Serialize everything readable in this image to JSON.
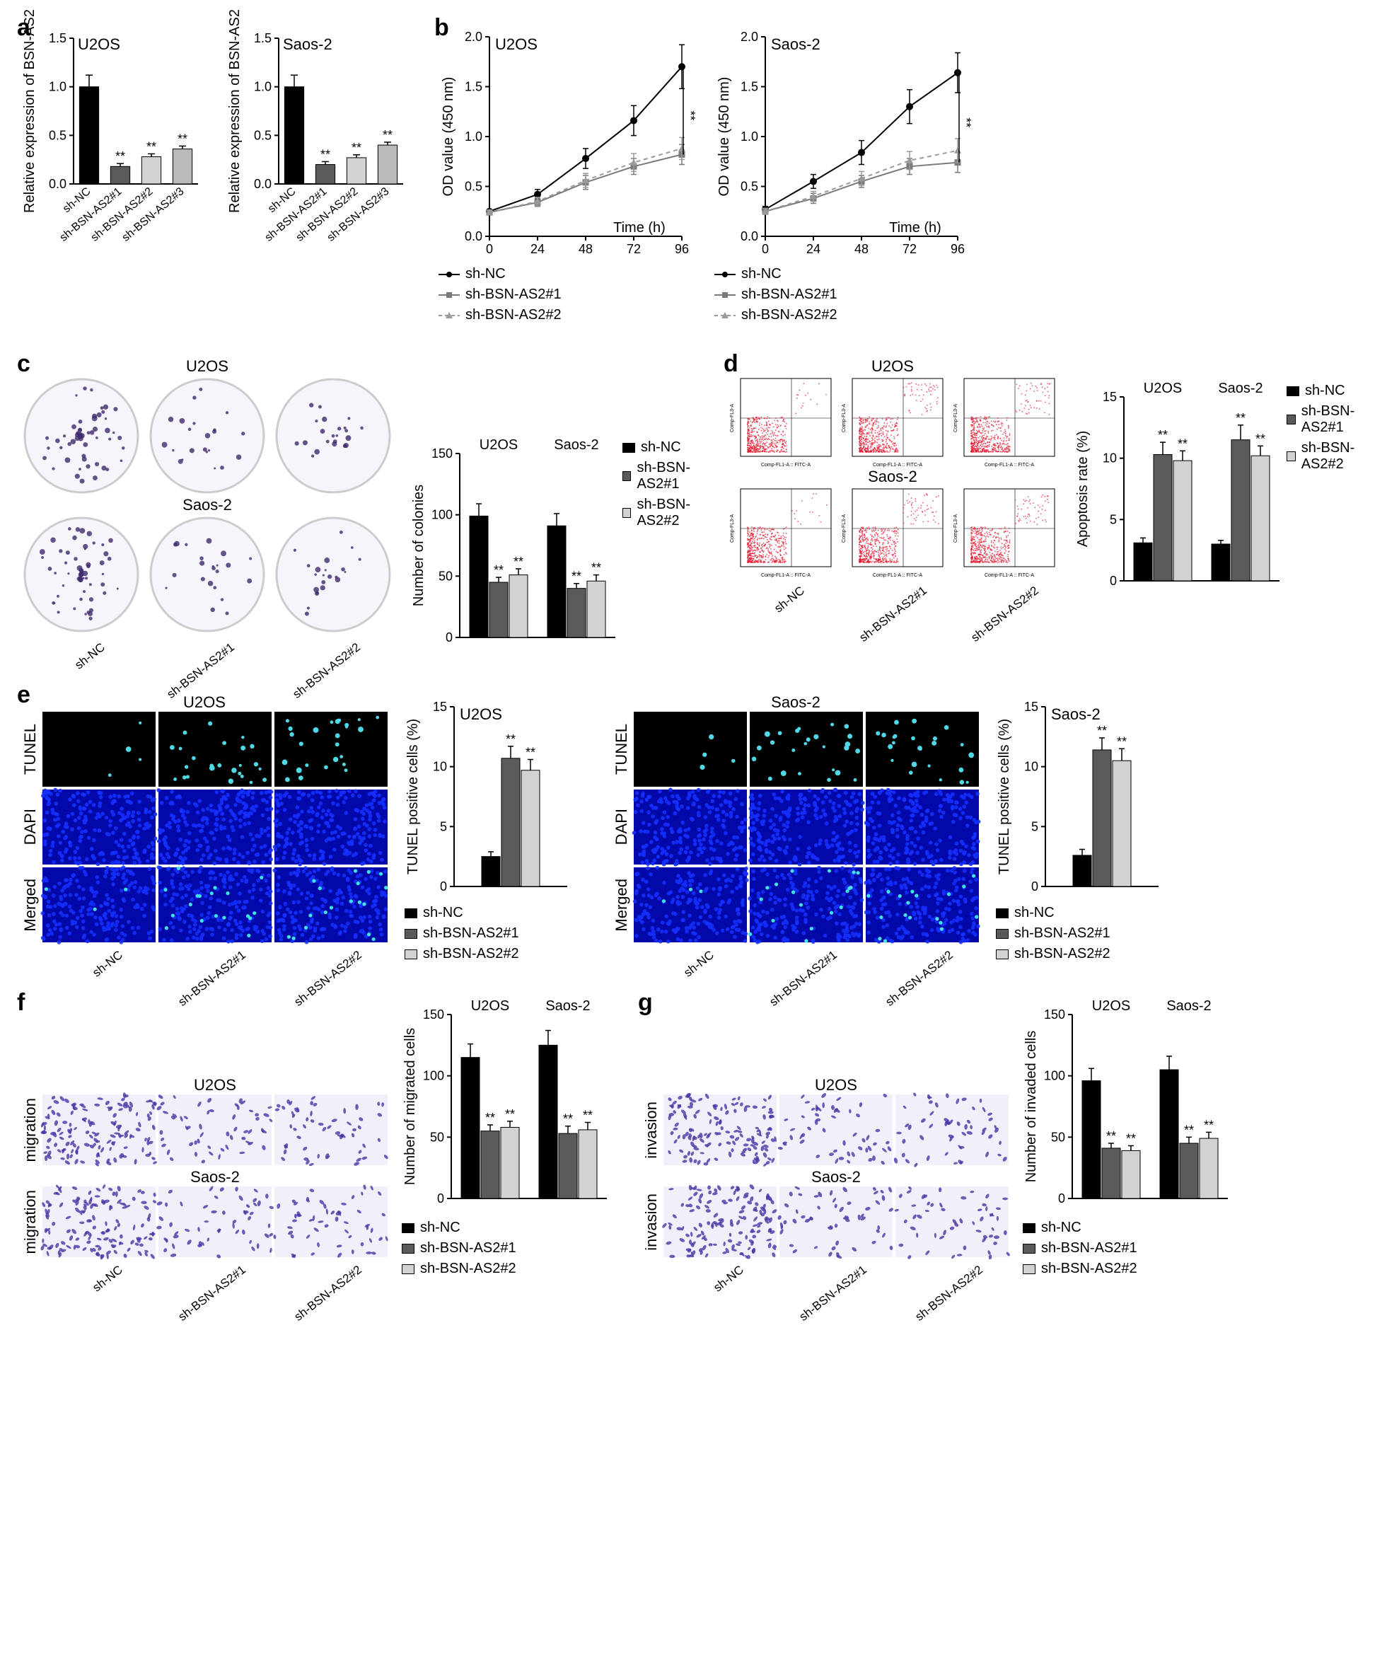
{
  "colors": {
    "black": "#000000",
    "grey_dark": "#5a5a5a",
    "grey_light": "#d2d2d2",
    "white": "#ffffff",
    "axis": "#000000",
    "dish_fill": "#f6f5fb",
    "dish_stroke": "#cccccc",
    "dot_colony": "#3e2b6b",
    "tunel_bg": "#000000",
    "tunel_dot": "#4fd8e6",
    "dapi_fill": "#0a1bdd",
    "dapi_dot": "#1530ff",
    "merge_dot": "#3fe5e5",
    "flow_red": "#e6162d",
    "transwell": "#4a34a5",
    "transwell_bg": "#f2effa"
  },
  "groups": [
    "sh-NC",
    "sh-BSN-AS2#1",
    "sh-BSN-AS2#2"
  ],
  "groups4": [
    "sh-NC",
    "sh-BSN-AS2#1",
    "sh-BSN-AS2#2",
    "sh-BSN-AS2#3"
  ],
  "cell_lines": [
    "U2OS",
    "Saos-2"
  ],
  "sig": "**",
  "a": {
    "ylabel": "Relative expression of BSN-AS2",
    "ylim": [
      0,
      1.5
    ],
    "ytick_step": 0.5,
    "series": {
      "U2OS": {
        "values": [
          1.0,
          0.18,
          0.28,
          0.36
        ],
        "err": [
          0.12,
          0.03,
          0.03,
          0.03
        ],
        "sig": [
          "",
          "**",
          "**",
          "**"
        ]
      },
      "Saos-2": {
        "values": [
          1.0,
          0.2,
          0.27,
          0.4
        ],
        "err": [
          0.12,
          0.03,
          0.03,
          0.03
        ],
        "sig": [
          "",
          "**",
          "**",
          "**"
        ]
      }
    },
    "bar_colors": [
      "#000000",
      "#5a5a5a",
      "#d2d2d2",
      "#b9b9b9"
    ]
  },
  "b": {
    "ylabel": "OD value (450 nm)",
    "xlabel": "Time (h)",
    "ylim": [
      0,
      2.0
    ],
    "ytick_step": 0.5,
    "x": [
      0,
      24,
      48,
      72,
      96
    ],
    "series": {
      "U2OS": {
        "sh-NC": {
          "y": [
            0.25,
            0.42,
            0.78,
            1.16,
            1.7
          ],
          "err": [
            0.02,
            0.05,
            0.1,
            0.15,
            0.22
          ],
          "color": "#000000",
          "dash": false,
          "marker": "circle"
        },
        "sh-BSN-AS2#1": {
          "y": [
            0.24,
            0.34,
            0.54,
            0.7,
            0.82
          ],
          "err": [
            0.02,
            0.04,
            0.07,
            0.08,
            0.1
          ],
          "color": "#7a7a7a",
          "dash": false,
          "marker": "square"
        },
        "sh-BSN-AS2#2": {
          "y": [
            0.24,
            0.35,
            0.56,
            0.74,
            0.88
          ],
          "err": [
            0.02,
            0.04,
            0.07,
            0.09,
            0.11
          ],
          "color": "#9a9a9a",
          "dash": true,
          "marker": "triangle"
        }
      },
      "Saos-2": {
        "sh-NC": {
          "y": [
            0.27,
            0.55,
            0.84,
            1.3,
            1.64
          ],
          "err": [
            0.03,
            0.07,
            0.12,
            0.17,
            0.2
          ],
          "color": "#000000",
          "dash": false,
          "marker": "circle"
        },
        "sh-BSN-AS2#1": {
          "y": [
            0.25,
            0.38,
            0.55,
            0.7,
            0.74
          ],
          "err": [
            0.03,
            0.05,
            0.06,
            0.08,
            0.1
          ],
          "color": "#7a7a7a",
          "dash": false,
          "marker": "square"
        },
        "sh-BSN-AS2#2": {
          "y": [
            0.25,
            0.4,
            0.58,
            0.76,
            0.86
          ],
          "err": [
            0.03,
            0.05,
            0.07,
            0.09,
            0.12
          ],
          "color": "#9a9a9a",
          "dash": true,
          "marker": "triangle"
        }
      }
    },
    "sig_annotation": "**"
  },
  "c": {
    "ylabel": "Number of colonies",
    "ylim": [
      0,
      150
    ],
    "ytick_step": 50,
    "U2OS": {
      "values": [
        99,
        45,
        51
      ],
      "err": [
        10,
        4,
        5
      ],
      "sig": [
        "",
        "**",
        "**"
      ]
    },
    "Saos-2": {
      "values": [
        91,
        40,
        46
      ],
      "err": [
        10,
        4,
        5
      ],
      "sig": [
        "",
        "**",
        "**"
      ]
    }
  },
  "d": {
    "ylabel": "Apoptosis rate (%)",
    "ylim": [
      0,
      15
    ],
    "ytick_step": 5,
    "U2OS": {
      "values": [
        3.1,
        10.3,
        9.8
      ],
      "err": [
        0.4,
        1.0,
        0.8
      ],
      "sig": [
        "",
        "**",
        "**"
      ]
    },
    "Saos-2": {
      "values": [
        3.0,
        11.5,
        10.2
      ],
      "err": [
        0.3,
        1.2,
        0.8
      ],
      "sig": [
        "",
        "**",
        "**"
      ]
    }
  },
  "e": {
    "row_labels": [
      "TUNEL",
      "DAPI",
      "Merged"
    ],
    "ylabel": "TUNEL positive cells (%)",
    "ylim": [
      0,
      15
    ],
    "ytick_step": 5,
    "U2OS": {
      "values": [
        2.5,
        10.7,
        9.7
      ],
      "err": [
        0.4,
        1.0,
        0.9
      ],
      "sig": [
        "",
        "**",
        "**"
      ]
    },
    "Saos-2": {
      "values": [
        2.6,
        11.4,
        10.5
      ],
      "err": [
        0.5,
        1.0,
        1.0
      ],
      "sig": [
        "",
        "**",
        "**"
      ]
    }
  },
  "f": {
    "side_label": "migration",
    "ylabel": "Number of migrated cells",
    "ylim": [
      0,
      150
    ],
    "ytick_step": 50,
    "U2OS": {
      "values": [
        115,
        55,
        58
      ],
      "err": [
        11,
        5,
        5
      ],
      "sig": [
        "",
        "**",
        "**"
      ]
    },
    "Saos-2": {
      "values": [
        125,
        53,
        56
      ],
      "err": [
        12,
        6,
        6
      ],
      "sig": [
        "",
        "**",
        "**"
      ]
    }
  },
  "g": {
    "side_label": "invasion",
    "ylabel": "Number of invaded cells",
    "ylim": [
      0,
      150
    ],
    "ytick_step": 50,
    "U2OS": {
      "values": [
        96,
        41,
        39
      ],
      "err": [
        10,
        4,
        4
      ],
      "sig": [
        "",
        "**",
        "**"
      ]
    },
    "Saos-2": {
      "values": [
        105,
        45,
        49
      ],
      "err": [
        11,
        5,
        5
      ],
      "sig": [
        "",
        "**",
        "**"
      ]
    }
  },
  "font": {
    "label_size": 22,
    "tick_size": 18,
    "title_size": 24,
    "legend_size": 20
  }
}
